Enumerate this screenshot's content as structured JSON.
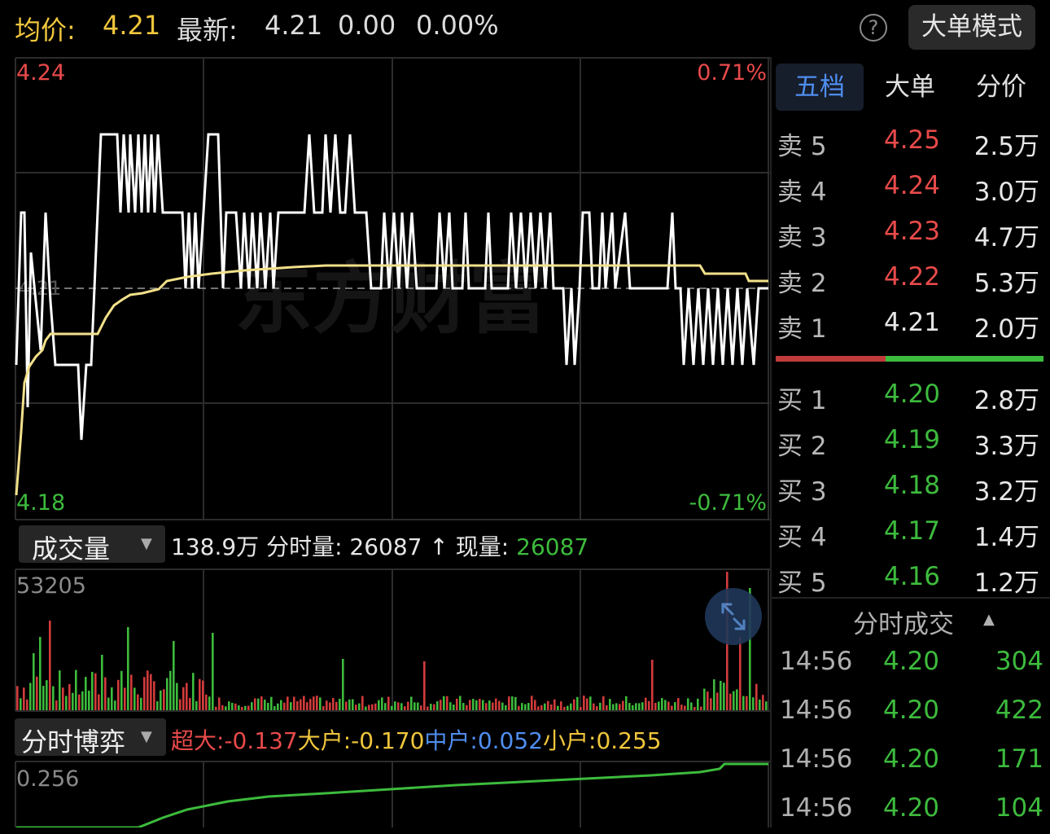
{
  "header": {
    "avg_label": "均价:",
    "avg_value": "4.21",
    "latest_label": "最新:",
    "latest_value": "4.21",
    "change": "0.00",
    "change_pct": "0.00%",
    "help_symbol": "?",
    "big_order_mode": "大单模式"
  },
  "price_chart": {
    "y_max": "4.24",
    "y_min": "4.18",
    "pct_max": "0.71%",
    "pct_min": "-0.71%",
    "ref_price": "4.21",
    "watermark": "东方财富",
    "price_line_color": "#ffffff",
    "avg_line_color": "#f2e08a"
  },
  "volume_panel": {
    "selector_label": "成交量",
    "total": "138.9万",
    "fenshi_label": "分时量:",
    "fenshi_value": "26087",
    "arrow": "↑",
    "xianliang_label": "现量:",
    "xianliang_value": "26087",
    "y_max": "53205",
    "expand_icon": "expand-arrows-icon"
  },
  "bogame_panel": {
    "selector_label": "分时博弈",
    "chaoda_label": "超大:",
    "chaoda_value": "-0.137",
    "dahu_label": "大户:",
    "dahu_value": "-0.170",
    "zhonghu_label": "中户:",
    "zhonghu_value": "0.052",
    "xiaohu_label": "小户:",
    "xiaohu_value": "0.255",
    "y_max": "0.256"
  },
  "order_book": {
    "tabs": [
      "五档",
      "大单",
      "分价"
    ],
    "active_tab": 0,
    "asks": [
      {
        "label": "卖 5",
        "price": "4.25",
        "vol": "2.5万",
        "color": "#e84a4a"
      },
      {
        "label": "卖 4",
        "price": "4.24",
        "vol": "3.0万",
        "color": "#e84a4a"
      },
      {
        "label": "卖 3",
        "price": "4.23",
        "vol": "4.7万",
        "color": "#e84a4a"
      },
      {
        "label": "卖 2",
        "price": "4.22",
        "vol": "5.3万",
        "color": "#e84a4a"
      },
      {
        "label": "卖 1",
        "price": "4.21",
        "vol": "2.0万",
        "color": "#e6e6e6"
      }
    ],
    "bids": [
      {
        "label": "买 1",
        "price": "4.20",
        "vol": "2.8万",
        "color": "#3dbb3d"
      },
      {
        "label": "买 2",
        "price": "4.19",
        "vol": "3.3万",
        "color": "#3dbb3d"
      },
      {
        "label": "买 3",
        "price": "4.18",
        "vol": "3.2万",
        "color": "#3dbb3d"
      },
      {
        "label": "买 4",
        "price": "4.17",
        "vol": "1.4万",
        "color": "#3dbb3d"
      },
      {
        "label": "买 5",
        "price": "4.16",
        "vol": "1.2万",
        "color": "#3dbb3d"
      }
    ],
    "ratio_sell_fraction": 0.41
  },
  "ticks": {
    "title": "分时成交",
    "rows": [
      {
        "time": "14:56",
        "price": "4.20",
        "vol": "304"
      },
      {
        "time": "14:56",
        "price": "4.20",
        "vol": "422"
      },
      {
        "time": "14:56",
        "price": "4.20",
        "vol": "171"
      },
      {
        "time": "14:56",
        "price": "4.20",
        "vol": "104"
      }
    ]
  }
}
